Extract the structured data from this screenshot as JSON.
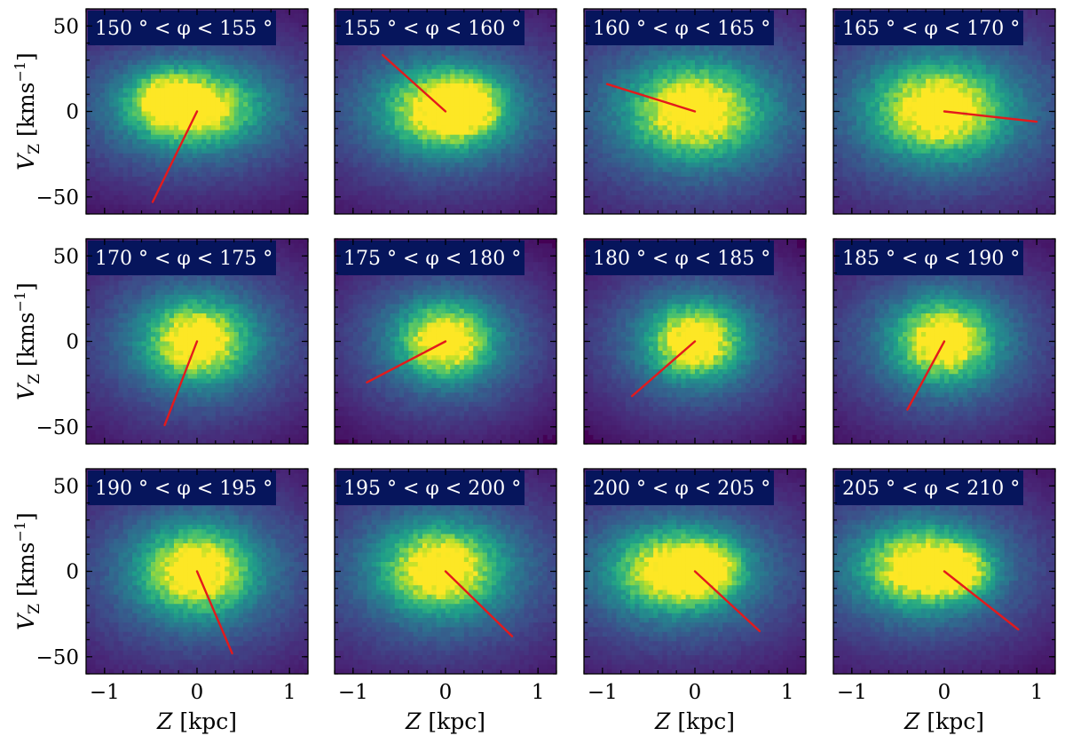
{
  "chart_data": {
    "type": "heatmap",
    "description_axes": {
      "xlabel": "Z [kpc]",
      "ylabel": "V_Z [kms^-1]",
      "xlim": [
        -1.2,
        1.2
      ],
      "ylim": [
        -60,
        60
      ],
      "xticks": [
        -1,
        0,
        1
      ],
      "xtick_labels": [
        "−1",
        "0",
        "1"
      ],
      "yticks": [
        50,
        0,
        -50
      ],
      "ytick_labels": [
        "50",
        "0",
        "−50"
      ]
    },
    "colormap": "viridis",
    "colors": {
      "low": "#440154",
      "high": "#fde725",
      "fit_line": "#e31a1c",
      "label_box": "#06155c",
      "label_text": "#ffffff"
    },
    "grid": {
      "rows": 3,
      "cols": 4
    },
    "panels": [
      {
        "label": "150 ° < φ < 155 °",
        "phi_min": 150,
        "phi_max": 155,
        "line_end": [
          -0.48,
          -53
        ],
        "peak": [
          -0.05,
          2
        ],
        "spread": [
          0.4,
          13
        ],
        "second_lobe": [
          -0.35,
          8
        ],
        "density": "sparse"
      },
      {
        "label": "155 ° < φ < 160 °",
        "phi_min": 155,
        "phi_max": 160,
        "line_end": [
          -0.68,
          33
        ],
        "peak": [
          0.0,
          1
        ],
        "spread": [
          0.38,
          14
        ],
        "second_lobe": [
          0.25,
          4
        ],
        "density": "sparse"
      },
      {
        "label": "160 ° < φ < 165 °",
        "phi_min": 160,
        "phi_max": 165,
        "line_end": [
          -0.95,
          16
        ],
        "peak": [
          0.0,
          0
        ],
        "spread": [
          0.42,
          16
        ],
        "second_lobe": null,
        "density": "medium"
      },
      {
        "label": "165 ° < φ < 170 °",
        "phi_min": 165,
        "phi_max": 170,
        "line_end": [
          1.0,
          -6
        ],
        "peak": [
          -0.05,
          1
        ],
        "spread": [
          0.42,
          16
        ],
        "second_lobe": null,
        "density": "medium"
      },
      {
        "label": "170 ° < φ < 175 °",
        "phi_min": 170,
        "phi_max": 175,
        "line_end": [
          -0.35,
          -49
        ],
        "peak": [
          0.0,
          0
        ],
        "spread": [
          0.33,
          14
        ],
        "second_lobe": null,
        "density": "dense"
      },
      {
        "label": "175 ° < φ < 180 °",
        "phi_min": 175,
        "phi_max": 180,
        "line_end": [
          -0.85,
          -24
        ],
        "peak": [
          0.0,
          0
        ],
        "spread": [
          0.3,
          13
        ],
        "second_lobe": null,
        "density": "dense"
      },
      {
        "label": "180 ° < φ < 185 °",
        "phi_min": 180,
        "phi_max": 185,
        "line_end": [
          -0.68,
          -32
        ],
        "peak": [
          0.0,
          0
        ],
        "spread": [
          0.3,
          13
        ],
        "second_lobe": null,
        "density": "dense"
      },
      {
        "label": "185 ° < φ < 190 °",
        "phi_min": 185,
        "phi_max": 190,
        "line_end": [
          -0.4,
          -40
        ],
        "peak": [
          0.0,
          0
        ],
        "spread": [
          0.32,
          14
        ],
        "second_lobe": null,
        "density": "dense"
      },
      {
        "label": "190 ° < φ < 195 °",
        "phi_min": 190,
        "phi_max": 195,
        "line_end": [
          0.38,
          -48
        ],
        "peak": [
          0.0,
          0
        ],
        "spread": [
          0.36,
          15
        ],
        "second_lobe": null,
        "density": "medium"
      },
      {
        "label": "195 ° < φ < 200 °",
        "phi_min": 195,
        "phi_max": 200,
        "line_end": [
          0.72,
          -38
        ],
        "peak": [
          -0.05,
          1
        ],
        "spread": [
          0.38,
          15
        ],
        "second_lobe": null,
        "density": "medium"
      },
      {
        "label": "200 ° < φ < 205 °",
        "phi_min": 200,
        "phi_max": 205,
        "line_end": [
          0.7,
          -35
        ],
        "peak": [
          -0.2,
          0
        ],
        "spread": [
          0.4,
          14
        ],
        "second_lobe": [
          0.15,
          2
        ],
        "density": "sparse"
      },
      {
        "label": "205 ° < φ < 210 °",
        "phi_min": 205,
        "phi_max": 210,
        "line_end": [
          0.8,
          -34
        ],
        "peak": [
          -0.25,
          2
        ],
        "spread": [
          0.38,
          14
        ],
        "second_lobe": [
          0.2,
          0
        ],
        "density": "sparse"
      }
    ]
  }
}
